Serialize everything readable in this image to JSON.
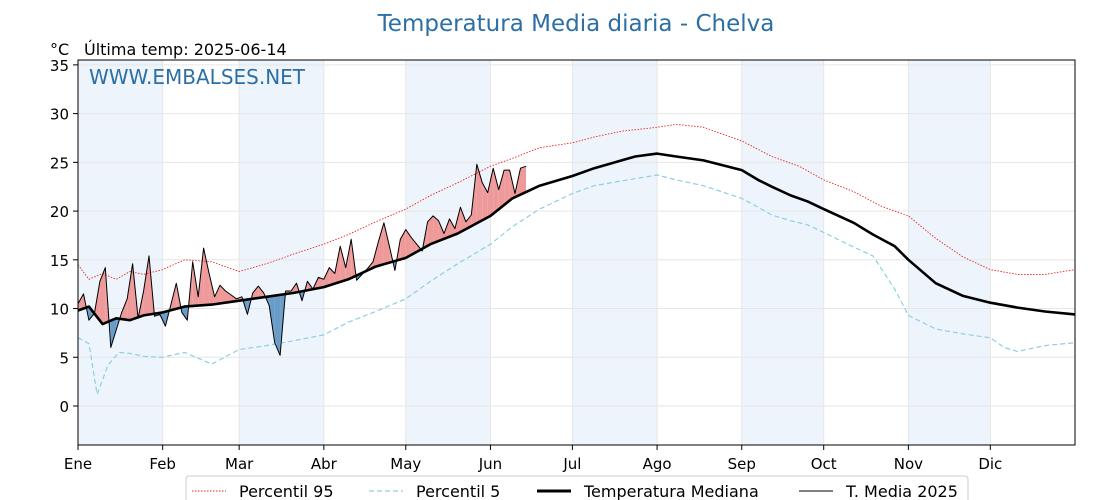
{
  "chart_data": {
    "type": "line",
    "title": "Temperatura Media diaria - Chelva",
    "unit_label": "°C",
    "last_temp_label": "Última temp: 2025-06-14",
    "watermark": "WWW.EMBALSES.NET",
    "xlabel": "",
    "ylabel": "",
    "ylim": [
      -4,
      35.5
    ],
    "xlim": [
      1,
      366
    ],
    "yticks": [
      0,
      5,
      10,
      15,
      20,
      25,
      30,
      35
    ],
    "months": [
      {
        "label": "Ene",
        "day": 1
      },
      {
        "label": "Feb",
        "day": 32
      },
      {
        "label": "Mar",
        "day": 60
      },
      {
        "label": "Abr",
        "day": 91
      },
      {
        "label": "May",
        "day": 121
      },
      {
        "label": "Jun",
        "day": 152
      },
      {
        "label": "Jul",
        "day": 182
      },
      {
        "label": "Ago",
        "day": 213
      },
      {
        "label": "Sep",
        "day": 244
      },
      {
        "label": "Oct",
        "day": 274
      },
      {
        "label": "Nov",
        "day": 305
      },
      {
        "label": "Dic",
        "day": 335
      }
    ],
    "grid": true,
    "legend_placement": "bottom-center",
    "colors": {
      "p95": "#e8251f",
      "p5": "#8ecfe0",
      "median": "#000000",
      "current": "#000000",
      "above_fill": "#ef9a9a",
      "below_fill": "#6a9cc8",
      "title": "#2c6fa5",
      "band": "#eef4fb"
    },
    "series": [
      {
        "name": "Percentil 95",
        "style": "dotted",
        "x": [
          1,
          5,
          10,
          15,
          20,
          25,
          32,
          40,
          50,
          60,
          70,
          80,
          91,
          100,
          110,
          121,
          130,
          140,
          152,
          160,
          170,
          182,
          190,
          200,
          213,
          220,
          230,
          244,
          255,
          265,
          274,
          285,
          295,
          305,
          315,
          325,
          335,
          345,
          355,
          366
        ],
        "values": [
          14.5,
          13.0,
          13.6,
          13.0,
          13.8,
          13.5,
          14.0,
          15.0,
          14.8,
          13.8,
          14.6,
          15.6,
          16.6,
          17.6,
          18.9,
          20.2,
          21.6,
          22.9,
          24.6,
          25.4,
          26.5,
          27.0,
          27.6,
          28.2,
          28.6,
          28.9,
          28.6,
          27.2,
          25.6,
          24.6,
          23.2,
          22.0,
          20.5,
          19.5,
          17.2,
          15.3,
          14.0,
          13.5,
          13.5,
          14.0
        ]
      },
      {
        "name": "Percentil 5",
        "style": "dashed",
        "x": [
          1,
          5,
          8,
          12,
          16,
          20,
          25,
          32,
          40,
          50,
          60,
          70,
          80,
          91,
          100,
          110,
          121,
          130,
          140,
          152,
          160,
          170,
          182,
          190,
          200,
          213,
          220,
          230,
          244,
          250,
          255,
          262,
          268,
          274,
          285,
          292,
          300,
          305,
          315,
          325,
          335,
          340,
          345,
          355,
          366
        ],
        "values": [
          7.0,
          6.4,
          1.2,
          4.2,
          5.5,
          5.4,
          5.1,
          5.0,
          5.5,
          4.3,
          5.8,
          6.2,
          6.7,
          7.3,
          8.6,
          9.7,
          11.0,
          12.8,
          14.6,
          16.6,
          18.4,
          20.2,
          21.8,
          22.6,
          23.1,
          23.7,
          23.2,
          22.6,
          21.3,
          20.4,
          19.6,
          19.0,
          18.6,
          17.8,
          16.3,
          15.4,
          12.0,
          9.3,
          7.9,
          7.4,
          7.0,
          6.0,
          5.6,
          6.2,
          6.5
        ]
      },
      {
        "name": "Temperatura Mediana",
        "style": "solid-thick",
        "x": [
          1,
          5,
          10,
          15,
          20,
          25,
          32,
          40,
          50,
          60,
          70,
          80,
          91,
          100,
          110,
          121,
          130,
          140,
          152,
          160,
          170,
          182,
          190,
          200,
          205,
          213,
          220,
          230,
          244,
          250,
          255,
          262,
          268,
          274,
          285,
          292,
          300,
          305,
          315,
          325,
          335,
          345,
          355,
          366
        ],
        "values": [
          9.8,
          10.2,
          8.4,
          9.0,
          8.8,
          9.3,
          9.6,
          10.2,
          10.4,
          10.8,
          11.2,
          11.6,
          12.2,
          13.0,
          14.3,
          15.2,
          16.6,
          17.7,
          19.5,
          21.3,
          22.6,
          23.6,
          24.4,
          25.2,
          25.6,
          25.9,
          25.6,
          25.2,
          24.2,
          23.2,
          22.5,
          21.6,
          21.0,
          20.2,
          18.8,
          17.6,
          16.4,
          15.0,
          12.6,
          11.3,
          10.6,
          10.1,
          9.7,
          9.4
        ]
      },
      {
        "name": "T. Media 2025",
        "style": "solid-thin",
        "x": [
          1,
          3,
          5,
          7,
          9,
          11,
          13,
          15,
          17,
          19,
          21,
          23,
          25,
          27,
          29,
          31,
          33,
          35,
          37,
          39,
          41,
          43,
          45,
          47,
          49,
          51,
          53,
          55,
          57,
          59,
          61,
          63,
          65,
          67,
          69,
          71,
          73,
          75,
          77,
          79,
          81,
          83,
          85,
          87,
          89,
          91,
          93,
          95,
          97,
          99,
          101,
          103,
          105,
          107,
          109,
          111,
          113,
          115,
          117,
          119,
          121,
          123,
          125,
          127,
          129,
          131,
          133,
          135,
          137,
          139,
          141,
          143,
          145,
          147,
          149,
          151,
          153,
          155,
          157,
          159,
          161,
          163,
          165
        ],
        "values": [
          10.5,
          11.5,
          8.8,
          9.5,
          12.8,
          14.2,
          6.0,
          7.8,
          9.6,
          11.0,
          14.6,
          9.0,
          11.8,
          15.4,
          9.2,
          9.4,
          8.2,
          10.4,
          12.6,
          9.6,
          8.8,
          14.8,
          11.2,
          16.2,
          13.6,
          11.2,
          12.4,
          11.8,
          11.4,
          11.0,
          11.2,
          9.4,
          11.6,
          12.3,
          11.6,
          10.3,
          6.5,
          5.2,
          11.8,
          11.8,
          12.6,
          10.8,
          12.8,
          12.0,
          13.2,
          13.0,
          14.2,
          13.6,
          16.4,
          14.2,
          17.1,
          12.9,
          13.5,
          14.1,
          14.8,
          16.9,
          18.8,
          16.4,
          13.9,
          17.1,
          18.1,
          17.3,
          16.6,
          15.9,
          18.9,
          19.5,
          19.0,
          17.7,
          19.2,
          18.2,
          20.4,
          18.9,
          19.6,
          24.8,
          22.9,
          21.9,
          24.4,
          22.2,
          24.2,
          24.2,
          21.8,
          24.4,
          24.6
        ]
      }
    ],
    "legend": [
      "Percentil 95",
      "Percentil 5",
      "Temperatura Mediana",
      "T. Media 2025"
    ]
  }
}
